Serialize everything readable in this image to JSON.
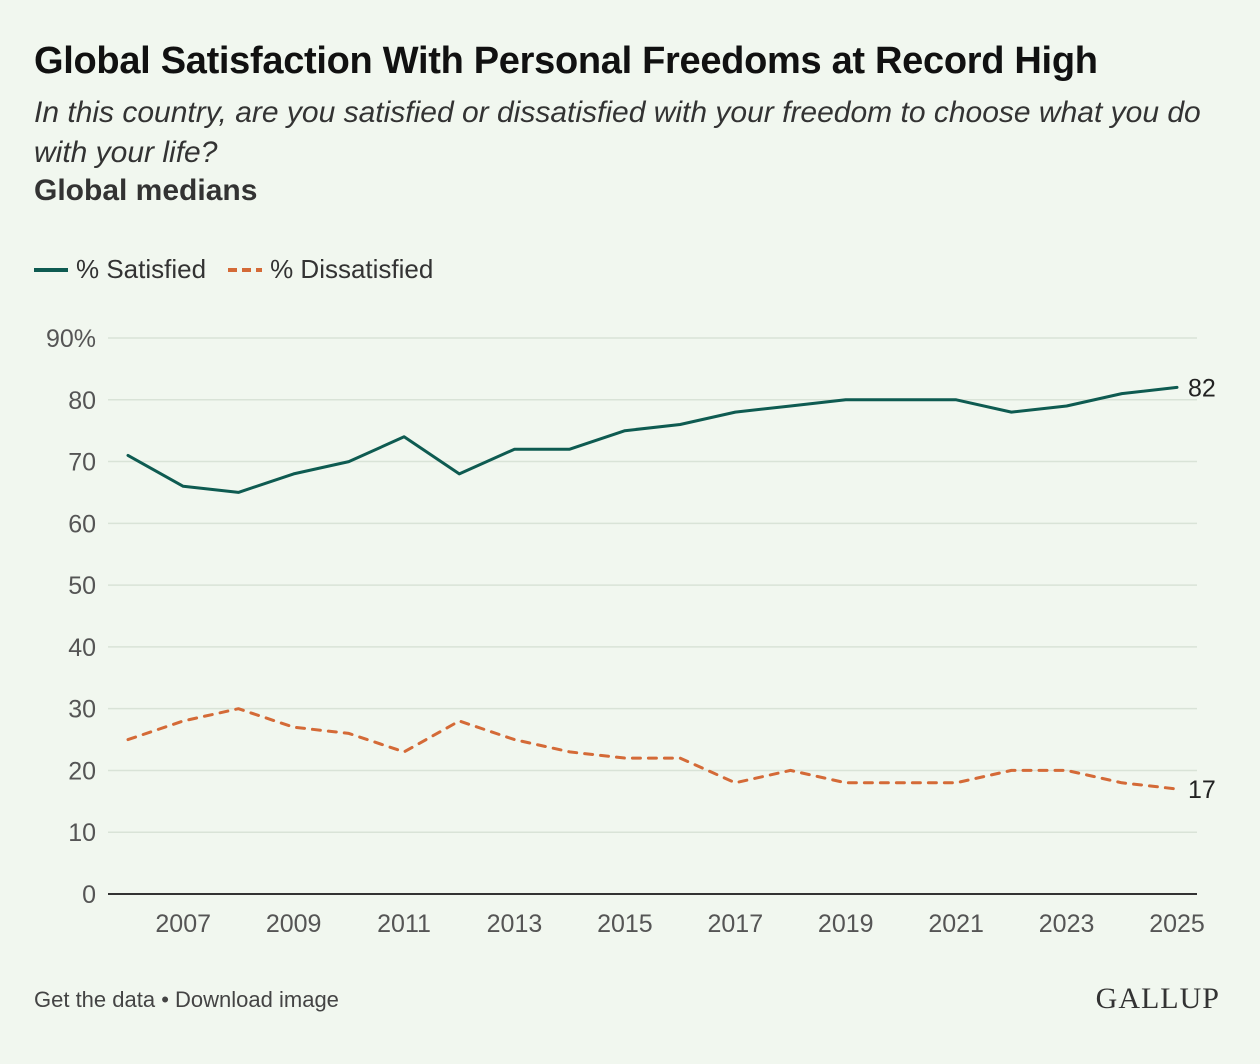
{
  "title": "Global Satisfaction With Personal Freedoms at Record High",
  "subtitle": "In this country, are you satisfied or dissatisfied with your freedom to choose what you do with your life?",
  "subhead": "Global medians",
  "footer": {
    "get_data": "Get the data",
    "separator": "•",
    "download": "Download image"
  },
  "logo": "GALLUP",
  "colors": {
    "satisfied": "#0e5b51",
    "dissatisfied": "#d46a37",
    "grid": "#d9e3d7",
    "background": "#f1f7ef"
  },
  "chart_data": {
    "type": "line",
    "x": [
      2006,
      2007,
      2008,
      2009,
      2010,
      2011,
      2012,
      2013,
      2014,
      2015,
      2016,
      2017,
      2018,
      2019,
      2020,
      2021,
      2022,
      2023,
      2024,
      2025
    ],
    "series": [
      {
        "name": "% Satisfied",
        "style": "solid",
        "color": "#0e5b51",
        "values": [
          71,
          66,
          65,
          68,
          70,
          74,
          68,
          72,
          72,
          75,
          76,
          78,
          79,
          80,
          80,
          80,
          78,
          79,
          81,
          82
        ]
      },
      {
        "name": "% Dissatisfied",
        "style": "dashed",
        "color": "#d46a37",
        "values": [
          25,
          28,
          30,
          27,
          26,
          23,
          28,
          25,
          23,
          22,
          22,
          18,
          20,
          18,
          18,
          18,
          20,
          20,
          18,
          17
        ]
      }
    ],
    "end_labels": [
      "82",
      "17"
    ],
    "ylim": [
      0,
      90
    ],
    "yticks": [
      0,
      10,
      20,
      30,
      40,
      50,
      60,
      70,
      80,
      90
    ],
    "ytick_labels": [
      "0",
      "10",
      "20",
      "30",
      "40",
      "50",
      "60",
      "70",
      "80",
      "90%"
    ],
    "xticks": [
      2007,
      2009,
      2011,
      2013,
      2015,
      2017,
      2019,
      2021,
      2023,
      2025
    ],
    "xtick_labels": [
      "2007",
      "2009",
      "2011",
      "2013",
      "2015",
      "2017",
      "2019",
      "2021",
      "2023",
      "2025"
    ],
    "grid": true,
    "legend": "top-left"
  }
}
